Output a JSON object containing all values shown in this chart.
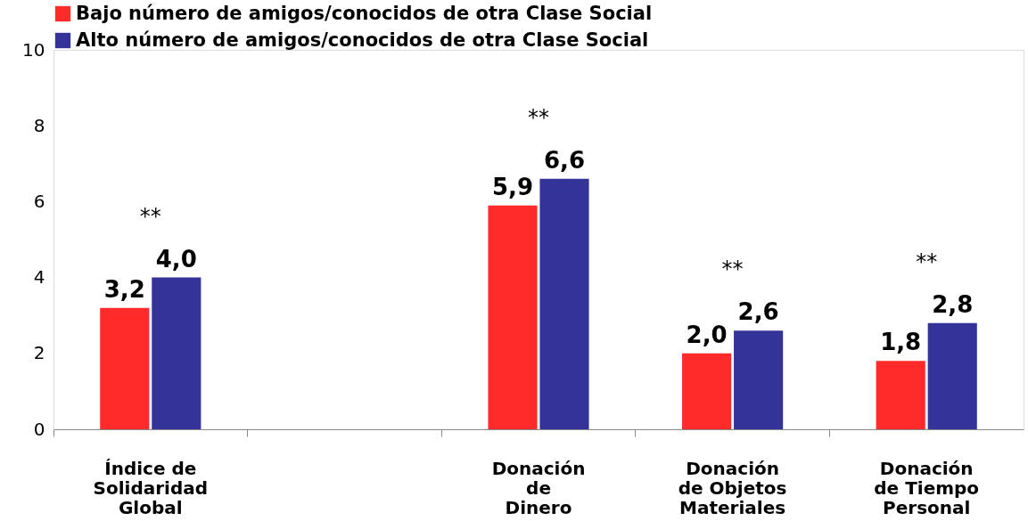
{
  "chart_data": {
    "type": "bar",
    "categories": [
      "Índice de\nSolidaridad\nGlobal",
      null,
      "Donación\nde\nDinero",
      "Donación\nde Objetos\nMateriales",
      "Donación\nde Tiempo\nPersonal"
    ],
    "series": [
      {
        "name": "Bajo número de amigos/conocidos de otra Clase Social",
        "color": "#ff2a2a",
        "values": [
          3.2,
          null,
          5.9,
          2.0,
          1.8
        ],
        "value_labels": [
          "3,2",
          null,
          "5,9",
          "2,0",
          "1,8"
        ]
      },
      {
        "name": "Alto número de amigos/conocidos de otra Clase Social",
        "color": "#333399",
        "values": [
          4.0,
          null,
          6.6,
          2.6,
          2.8
        ],
        "value_labels": [
          "4,0",
          null,
          "6,6",
          "2,6",
          "2,8"
        ]
      }
    ],
    "ylim": [
      0,
      10
    ],
    "yticks": [
      0,
      2,
      4,
      6,
      8,
      10
    ],
    "grid": false,
    "legend": "top",
    "annotations": [
      "**",
      "**",
      "**",
      "**"
    ]
  }
}
